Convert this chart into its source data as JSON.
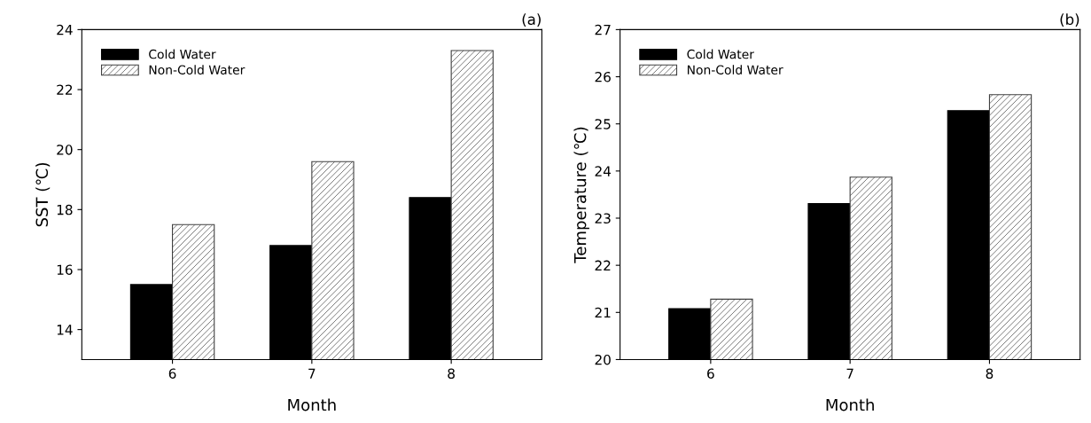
{
  "chart_data": [
    {
      "type": "bar",
      "title": "(a)",
      "xlabel": "Month",
      "ylabel": "SST (℃)",
      "categories": [
        "6",
        "7",
        "8"
      ],
      "ylim": [
        13,
        24
      ],
      "yticks": [
        14,
        16,
        18,
        20,
        22,
        24
      ],
      "legend": "top left",
      "grid": false,
      "series": [
        {
          "name": "Cold Water",
          "color": "#000000",
          "values": [
            15.5,
            16.8,
            18.4
          ]
        },
        {
          "name": "Non-Cold Water",
          "color": "#404040",
          "values": [
            17.5,
            19.6,
            23.3
          ]
        }
      ]
    },
    {
      "type": "bar",
      "title": "(b)",
      "xlabel": "Month",
      "ylabel": "Temperature (℃)",
      "categories": [
        "6",
        "7",
        "8"
      ],
      "ylim": [
        20,
        27
      ],
      "yticks": [
        20,
        21,
        22,
        23,
        24,
        25,
        26,
        27
      ],
      "legend": "top left",
      "grid": false,
      "series": [
        {
          "name": "Cold Water",
          "color": "#000000",
          "values": [
            21.08,
            23.31,
            25.28
          ]
        },
        {
          "name": "Non-Cold Water",
          "color": "#404040",
          "values": [
            21.28,
            23.87,
            25.62
          ]
        }
      ]
    }
  ]
}
